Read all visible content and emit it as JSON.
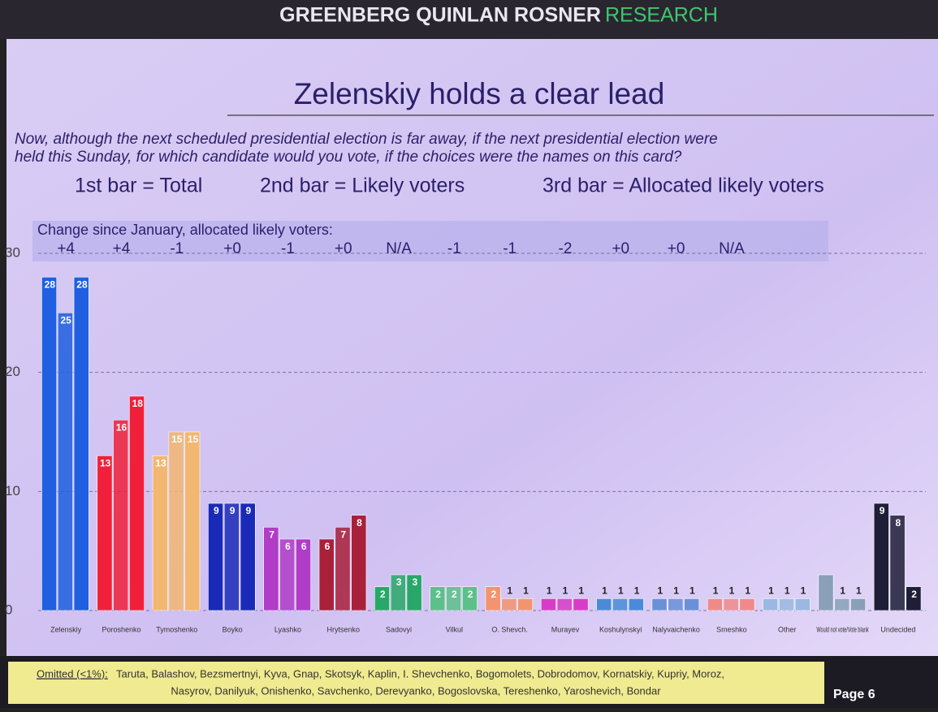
{
  "header": {
    "brand": "GREENBERG QUINLAN ROSNER",
    "brand_accent": "RESEARCH"
  },
  "chart_data": {
    "type": "grouped_bar",
    "title": "Zelenskiy holds a clear lead",
    "subtitle": [
      "Now, although the next scheduled presidential election is far away, if the next presidential election were",
      "held this Sunday, for which candidate would you vote, if the choices were the names on this card?"
    ],
    "categories": [
      "Zelenskiy",
      "Poroshenko",
      "Tymoshenko",
      "Boyko",
      "Lyashko",
      "Hrytsenko",
      "Sadovyi",
      "Vilkul",
      "O. Shevch.",
      "Murayev",
      "Koshulynskyi",
      "Nalyvaichenko",
      "Smeshko",
      "Other",
      "Would not vote/Vote blank",
      "Undecided"
    ],
    "category_colors": [
      "#1f5fe0",
      "#f0203a",
      "#f2b770",
      "#1a2ab8",
      "#b03cc8",
      "#a8203a",
      "#27a868",
      "#5cc08a",
      "#f29470",
      "#d63cc8",
      "#4a8ad8",
      "#6a90d8",
      "#f08a8a",
      "#9ab8e0",
      "#8aa0b8",
      "#1e1e38"
    ],
    "series": [
      {
        "name": "1st bar = Total",
        "values": [
          28,
          13,
          13,
          9,
          7,
          6,
          2,
          2,
          2,
          1,
          1,
          1,
          1,
          1,
          3,
          9
        ],
        "value_labels": [
          "28",
          "13",
          "13",
          "9",
          "7",
          "6",
          "2",
          "2",
          "2",
          "1",
          "1",
          "1",
          "1",
          "1",
          null,
          "9"
        ]
      },
      {
        "name": "2nd bar = Likely voters",
        "values": [
          25,
          16,
          15,
          9,
          6,
          7,
          3,
          2,
          1,
          1,
          1,
          1,
          1,
          1,
          1,
          8
        ]
      },
      {
        "name": "3rd bar = Allocated likely voters",
        "values": [
          28,
          18,
          15,
          9,
          6,
          8,
          3,
          2,
          1,
          1,
          1,
          1,
          1,
          1,
          1,
          2
        ]
      }
    ],
    "change": {
      "label": "Change since January, allocated likely voters:",
      "values": [
        "+4",
        "+4",
        "-1",
        "+0",
        "-1",
        "+0",
        "N/A",
        "-1",
        "-1",
        "-2",
        "+0",
        "+0",
        "N/A"
      ]
    },
    "ylim": [
      0,
      30
    ],
    "yticks": [
      0,
      10,
      20,
      30
    ],
    "grid": true
  },
  "footer": {
    "omitted_label": "Omitted (<1%):",
    "omitted": [
      "Taruta, Balashov, Bezsmertnyi, Kyva, Gnap, Skotsyk, Kaplin, I. Shevchenko, Bogomolets, Dobrodomov, Kornatskiy, Kupriy, Moroz,",
      "Nasyrov, Danilyuk, Onishenko, Savchenko, Derevyanko, Bogoslovska, Tereshenko, Yaroshevich, Bondar"
    ],
    "page": "Page 6"
  }
}
